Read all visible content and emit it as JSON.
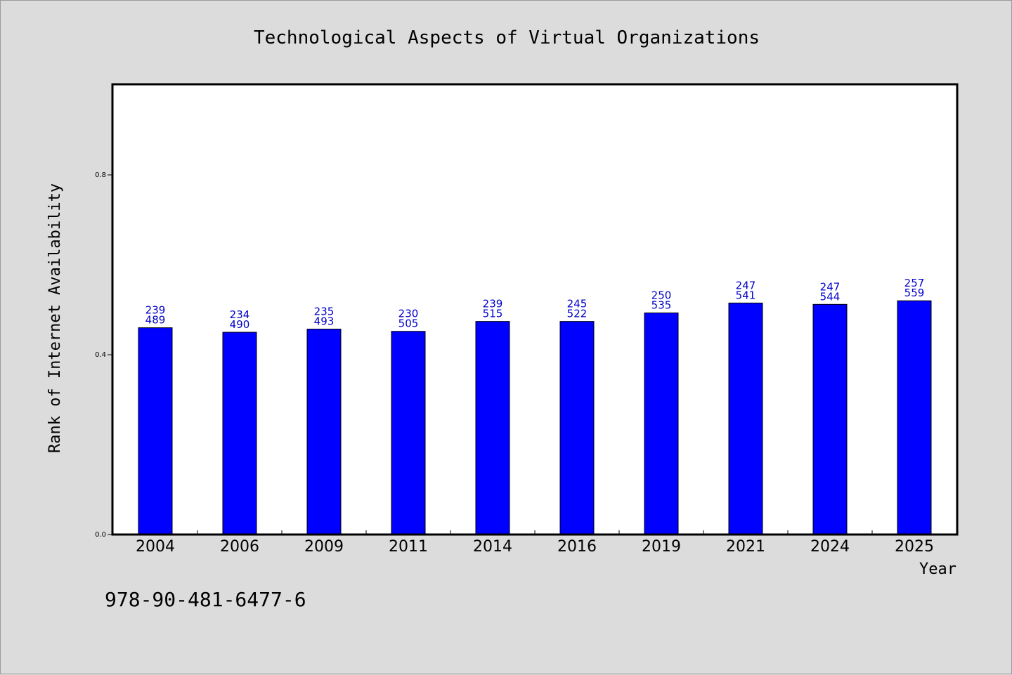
{
  "chart_data": {
    "type": "bar",
    "title": "Technological Aspects of Virtual Organizations",
    "xlabel": "Year",
    "ylabel": "Rank of Internet Availability",
    "categories": [
      "2004",
      "2006",
      "2009",
      "2011",
      "2014",
      "2016",
      "2019",
      "2021",
      "2024",
      "2025"
    ],
    "values": [
      0.46,
      0.45,
      0.457,
      0.452,
      0.474,
      0.474,
      0.493,
      0.515,
      0.512,
      0.52
    ],
    "label_top": [
      "239",
      "234",
      "235",
      "230",
      "239",
      "245",
      "250",
      "247",
      "247",
      "257"
    ],
    "label_bottom": [
      "489",
      "490",
      "493",
      "505",
      "515",
      "522",
      "535",
      "541",
      "544",
      "559"
    ],
    "ylim": [
      0,
      1.0
    ],
    "yticks": [
      0.0,
      0.4,
      0.8
    ],
    "ytick_labels": [
      "0.0",
      "0.4",
      "0.8"
    ],
    "grid": false,
    "bar_color": "#0000ff",
    "label_color": "#0000c8"
  },
  "footer": {
    "isbn": "978-90-481-6477-6"
  }
}
